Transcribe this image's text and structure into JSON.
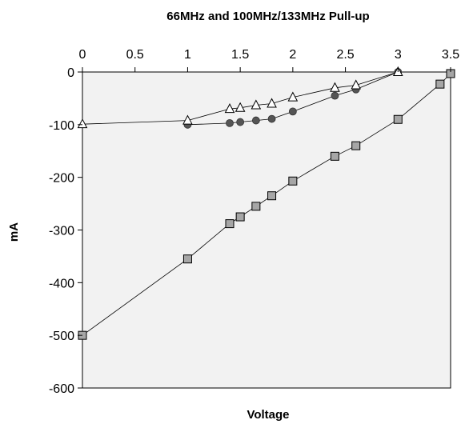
{
  "chart_data": {
    "type": "scatter",
    "title": "66MHz and 100MHz/133MHz Pull-up",
    "xlabel": "Voltage",
    "ylabel": "mA",
    "xlim": [
      0,
      3.5
    ],
    "ylim": [
      -600,
      0
    ],
    "x_axis_position": "top",
    "grid": false,
    "legend": "none",
    "plot_background": "#f2f2f2",
    "x_ticks": [
      "0",
      "0.5",
      "1",
      "1.5",
      "2",
      "2.5",
      "3",
      "3.5"
    ],
    "y_ticks": [
      "0",
      "-100",
      "-200",
      "-300",
      "-400",
      "-500",
      "-600"
    ],
    "series": [
      {
        "marker": "square",
        "color": "#a6a6a6",
        "x": [
          0,
          1,
          1.4,
          1.5,
          1.65,
          1.8,
          2,
          2.4,
          2.6,
          3,
          3.4,
          3.5
        ],
        "y": [
          -500,
          -355,
          -288,
          -275,
          -255,
          -235,
          -207,
          -160,
          -140,
          -90,
          -23,
          -3
        ]
      },
      {
        "marker": "circle",
        "color": "#555555",
        "x": [
          1,
          1.4,
          1.5,
          1.65,
          1.8,
          2,
          2.4,
          2.6,
          3
        ],
        "y": [
          -100,
          -97,
          -95,
          -92,
          -89,
          -75,
          -45,
          -33,
          0
        ]
      },
      {
        "marker": "triangle",
        "color": "#ffffff",
        "x": [
          0,
          1,
          1.4,
          1.5,
          1.65,
          1.8,
          2,
          2.4,
          2.6,
          3
        ],
        "y": [
          -99,
          -92,
          -70,
          -68,
          -63,
          -60,
          -48,
          -30,
          -25,
          0
        ]
      }
    ]
  }
}
